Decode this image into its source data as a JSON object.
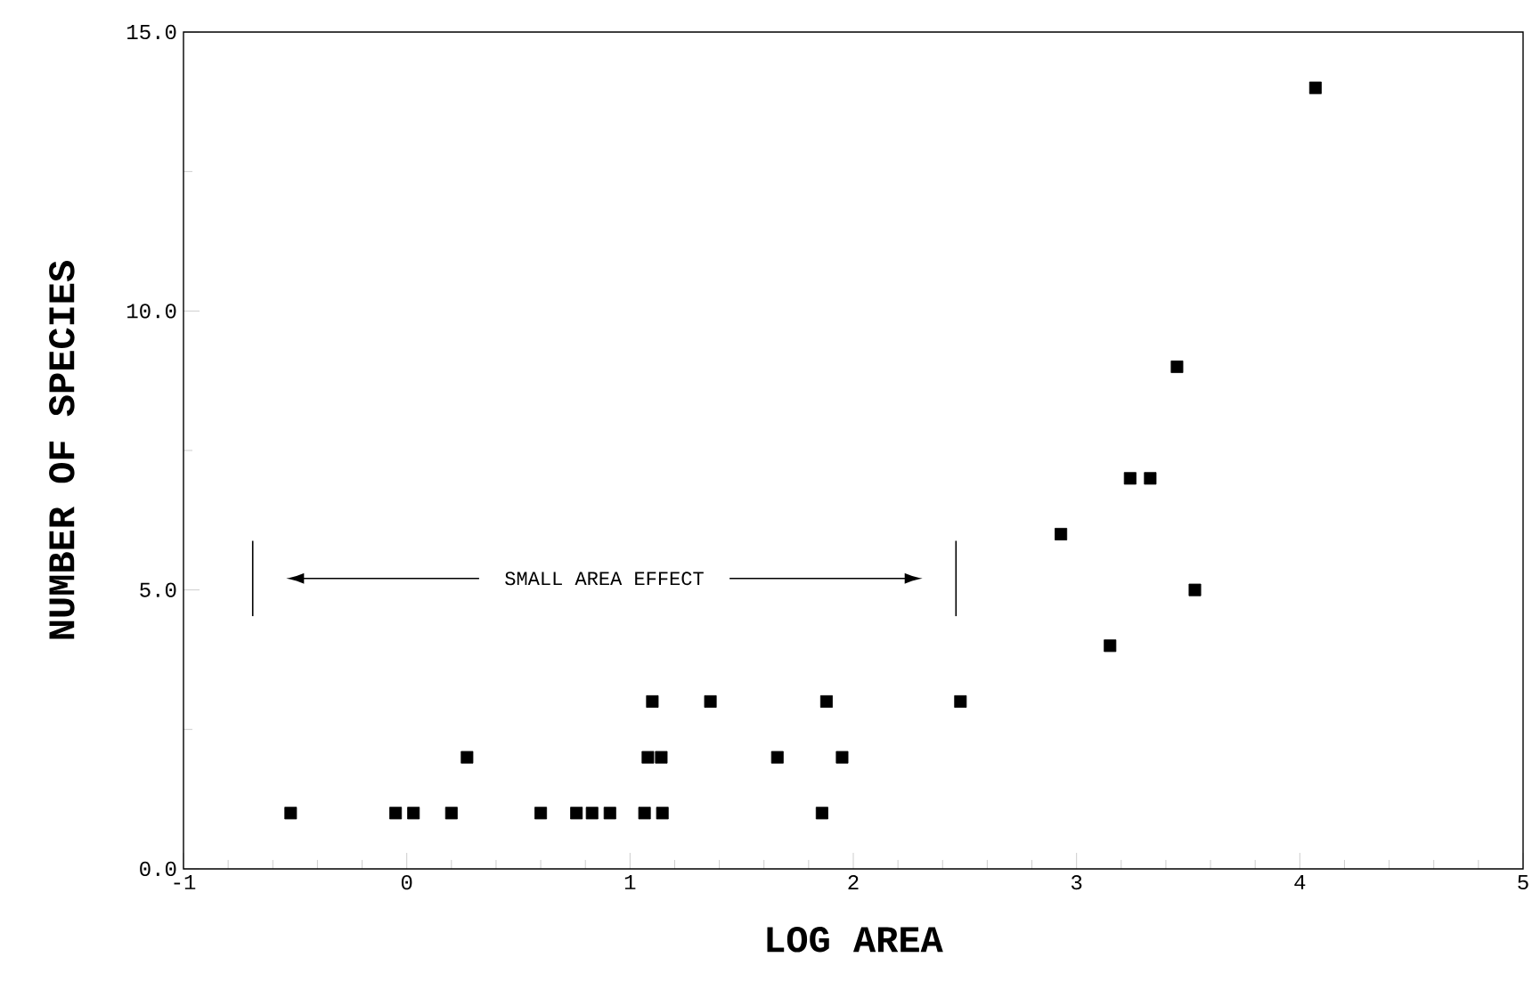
{
  "chart_data": {
    "type": "scatter",
    "xlabel": "LOG AREA",
    "ylabel": "NUMBER OF SPECIES",
    "x": [
      -0.52,
      -0.05,
      0.03,
      0.2,
      0.6,
      0.76,
      0.83,
      0.91,
      1.065,
      1.145,
      1.86,
      0.27,
      1.08,
      1.14,
      1.66,
      1.95,
      1.1,
      1.36,
      1.88,
      2.48,
      2.93,
      3.15,
      3.24,
      3.33,
      3.53,
      3.45,
      4.07
    ],
    "values": [
      1,
      1,
      1,
      1,
      1,
      1,
      1,
      1,
      1,
      1,
      1,
      2,
      2,
      2,
      2,
      2,
      3,
      3,
      3,
      3,
      6,
      4,
      7,
      7,
      5,
      9,
      14
    ],
    "color": "#000000",
    "marker": "square",
    "grid": false,
    "xlim": [
      -1,
      5
    ],
    "ylim": [
      0,
      15
    ],
    "xticks": [
      -1,
      0,
      1,
      2,
      3,
      4,
      5
    ],
    "yticks": [
      {
        "value": 0,
        "label": "0.0"
      },
      {
        "value": 5,
        "label": "5.0"
      },
      {
        "value": 10,
        "label": "10.0"
      },
      {
        "value": 15,
        "label": "15.0"
      }
    ],
    "ref_lines": [
      {
        "axis": "x",
        "value": -0.69
      },
      {
        "axis": "x",
        "value": 2.46
      }
    ],
    "annotations": [
      "SMALL AREA EFFECT"
    ]
  }
}
